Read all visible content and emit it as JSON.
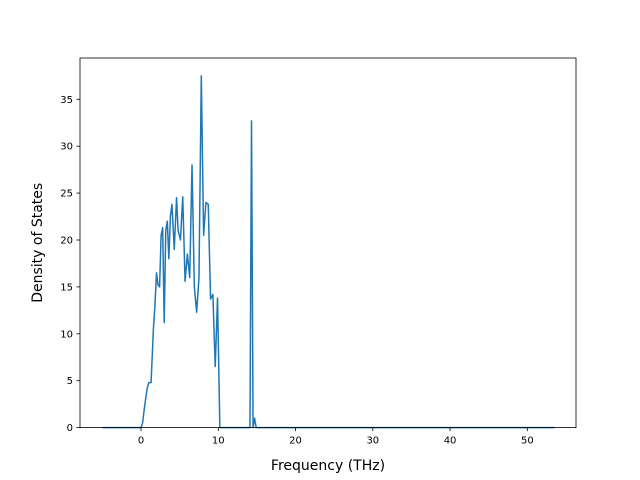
{
  "chart_data": {
    "type": "line",
    "xlabel": "Frequency (THz)",
    "ylabel": "Density of States",
    "xlim": [
      -7.9,
      56.3
    ],
    "ylim": [
      0,
      39.4
    ],
    "xticks": [
      0,
      10,
      20,
      30,
      40,
      50
    ],
    "yticks": [
      0,
      5,
      10,
      15,
      20,
      25,
      30,
      35
    ],
    "grid": false,
    "series": [
      {
        "color": "#1f77b4",
        "x": [
          -5,
          -4,
          -3,
          -2,
          -1,
          0,
          0.2,
          0.5,
          0.8,
          1.0,
          1.3,
          1.6,
          1.8,
          2.0,
          2.2,
          2.4,
          2.6,
          2.8,
          3.0,
          3.2,
          3.4,
          3.6,
          3.8,
          4.0,
          4.3,
          4.6,
          4.8,
          5.1,
          5.4,
          5.7,
          6.0,
          6.3,
          6.6,
          6.9,
          7.2,
          7.5,
          7.8,
          8.1,
          8.4,
          8.7,
          9.0,
          9.3,
          9.6,
          9.9,
          10.2,
          10.5,
          10.8,
          11.0,
          11.2,
          11.4,
          11.6,
          11.8,
          12.0,
          12.3,
          12.6,
          13.0,
          13.5,
          13.9,
          14.1,
          14.3,
          14.5,
          14.7,
          14.9,
          15.1,
          15.3,
          15.5,
          16,
          18,
          20,
          25,
          30,
          35,
          40,
          45,
          50,
          53.5
        ],
        "y": [
          0,
          0,
          0,
          0,
          0,
          0,
          0.5,
          2.5,
          4.2,
          4.8,
          4.8,
          10.5,
          13,
          16.5,
          15.2,
          15.0,
          20.5,
          21.3,
          11.2,
          21.0,
          22.0,
          18.0,
          22.5,
          23.8,
          19.0,
          24.5,
          21.0,
          20.0,
          24.6,
          15.6,
          18.5,
          16.0,
          28.0,
          15.0,
          12.3,
          16.0,
          37.5,
          20.5,
          24.0,
          23.8,
          13.7,
          14.2,
          6.5,
          13.8,
          0,
          0,
          0,
          0,
          0,
          0,
          0,
          0,
          0,
          0,
          0,
          0,
          0,
          0,
          0,
          32.7,
          0,
          1.0,
          0,
          0,
          0,
          0,
          0,
          0,
          0,
          0,
          0,
          0,
          0,
          0,
          0,
          0
        ]
      }
    ]
  }
}
